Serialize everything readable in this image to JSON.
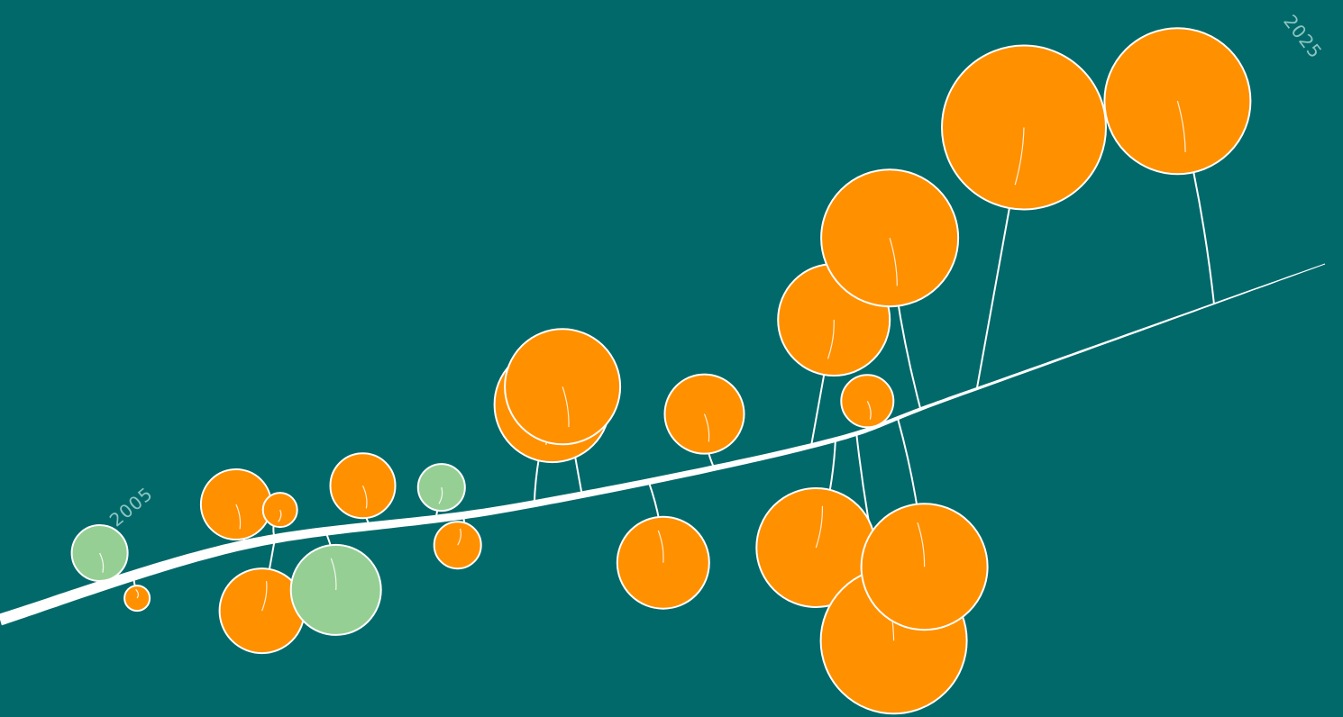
{
  "colors": {
    "background": "#02696a",
    "line": "#ffffff",
    "orange": "#ff9000",
    "green": "#96cf93",
    "label": "#8cc5c1"
  },
  "labels": {
    "start_year": "2005",
    "end_year": "2025"
  },
  "chart_data": {
    "type": "timeline-bubble",
    "x_range": [
      2005,
      2025
    ],
    "categories": [
      "orange",
      "green"
    ],
    "items": [
      {
        "t": 0.1,
        "above": true,
        "size": 31,
        "category": "green",
        "stem_len": 35
      },
      {
        "t": 0.12,
        "above": false,
        "size": 14,
        "category": "orange",
        "stem_len": 25
      },
      {
        "t": 0.2,
        "above": true,
        "size": 39,
        "category": "orange",
        "stem_len": 45
      },
      {
        "t": 0.225,
        "above": true,
        "size": 19,
        "category": "orange",
        "stem_len": 32
      },
      {
        "t": 0.225,
        "above": false,
        "size": 47,
        "category": "orange",
        "stem_len": 80
      },
      {
        "t": 0.265,
        "above": false,
        "size": 50,
        "category": "green",
        "stem_len": 65
      },
      {
        "t": 0.3,
        "above": true,
        "size": 36,
        "category": "orange",
        "stem_len": 45
      },
      {
        "t": 0.35,
        "above": true,
        "size": 26,
        "category": "green",
        "stem_len": 35
      },
      {
        "t": 0.37,
        "above": false,
        "size": 26,
        "category": "orange",
        "stem_len": 33
      },
      {
        "t": 0.42,
        "above": true,
        "size": 64,
        "category": "orange",
        "stem_len": 110
      },
      {
        "t": 0.45,
        "above": true,
        "size": 64,
        "category": "orange",
        "stem_len": 120
      },
      {
        "t": 0.49,
        "above": false,
        "size": 51,
        "category": "orange",
        "stem_len": 90
      },
      {
        "t": 0.53,
        "above": true,
        "size": 44,
        "category": "orange",
        "stem_len": 60
      },
      {
        "t": 0.6,
        "above": true,
        "size": 62,
        "category": "orange",
        "stem_len": 140
      },
      {
        "t": 0.625,
        "above": false,
        "size": 66,
        "category": "orange",
        "stem_len": 120
      },
      {
        "t": 0.655,
        "above": false,
        "size": 81,
        "category": "orange",
        "stem_len": 230
      },
      {
        "t": 0.685,
        "above": true,
        "size": 29,
        "category": "orange",
        "stem_len": 30
      },
      {
        "t": 0.735,
        "above": false,
        "size": 70,
        "category": "orange",
        "stem_len": 165
      },
      {
        "t": 0.767,
        "above": true,
        "size": 76,
        "category": "orange",
        "stem_len": 190
      },
      {
        "t": 0.815,
        "above": true,
        "size": 91,
        "category": "orange",
        "stem_len": 290
      },
      {
        "t": 0.93,
        "above": true,
        "size": 81,
        "category": "orange",
        "stem_len": 225
      }
    ]
  }
}
